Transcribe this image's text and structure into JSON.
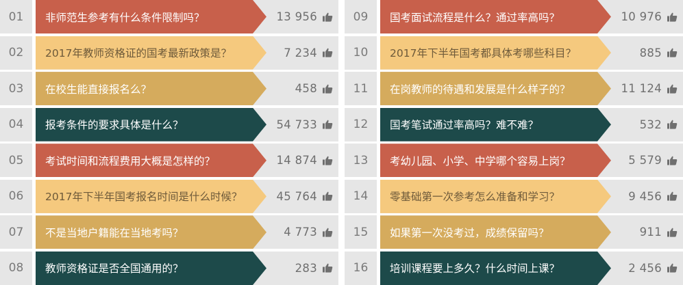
{
  "colors": {
    "red": "#c8604b",
    "sand": "#f5c97e",
    "gold": "#d5ab5d",
    "teal": "#1d4a4a",
    "cell_gray": "#e6e6e6"
  },
  "icon": "thumbs-up-icon",
  "columns": [
    {
      "rows": [
        {
          "num": "01",
          "question": "非师范生参考有什么条件限制吗？",
          "count": "13 956",
          "color": "red"
        },
        {
          "num": "02",
          "question": "2017年教师资格证的国考最新政策是？",
          "count": "7 234",
          "color": "sand"
        },
        {
          "num": "03",
          "question": "在校生能直接报名么？",
          "count": "458",
          "color": "gold"
        },
        {
          "num": "04",
          "question": "报考条件的要求具体是什么？",
          "count": "54 733",
          "color": "teal"
        },
        {
          "num": "05",
          "question": "考试时间和流程费用大概是怎样的？",
          "count": "14 874",
          "color": "red"
        },
        {
          "num": "06",
          "question": "2017年下半年国考报名时间是什么时候？",
          "count": "45 764",
          "color": "sand"
        },
        {
          "num": "07",
          "question": "不是当地户籍能在当地考吗？",
          "count": "4 773",
          "color": "gold"
        },
        {
          "num": "08",
          "question": "教师资格证是否全国通用的？",
          "count": "283",
          "color": "teal"
        }
      ]
    },
    {
      "rows": [
        {
          "num": "09",
          "question": "国考面试流程是什么？通过率高吗？",
          "count": "10 976",
          "color": "red"
        },
        {
          "num": "10",
          "question": "2017年下半年国考都具体考哪些科目？",
          "count": "885",
          "color": "sand"
        },
        {
          "num": "11",
          "question": "在岗教师的待遇和发展是什么样子的？",
          "count": "11 124",
          "color": "gold"
        },
        {
          "num": "12",
          "question": "国考笔试通过率高吗？难不难？",
          "count": "532",
          "color": "teal"
        },
        {
          "num": "13",
          "question": "考幼儿园、小学、中学哪个容易上岗？",
          "count": "5 579",
          "color": "red"
        },
        {
          "num": "14",
          "question": "零基础第一次参考怎么准备和学习？",
          "count": "9 456",
          "color": "sand"
        },
        {
          "num": "15",
          "question": "如果第一次没考过，成绩保留吗？",
          "count": "911",
          "color": "gold"
        },
        {
          "num": "16",
          "question": "培训课程要上多久？什么时间上课？",
          "count": "2 456",
          "color": "teal"
        }
      ]
    }
  ]
}
